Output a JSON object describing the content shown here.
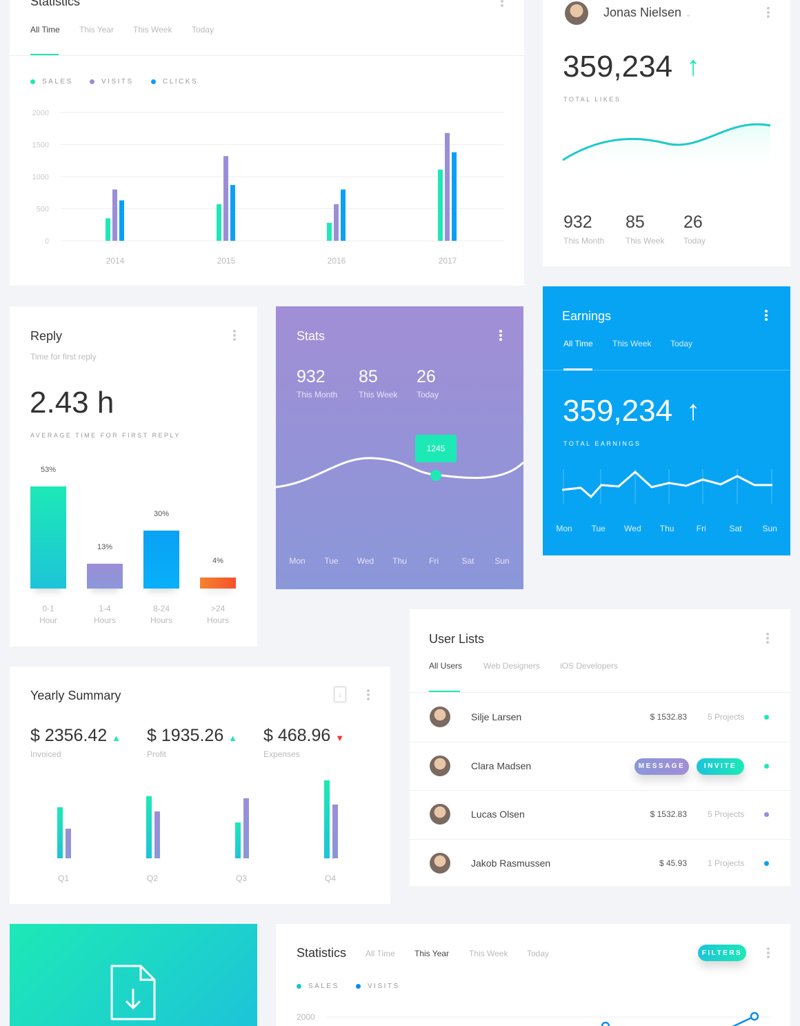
{
  "colors": {
    "teal": "#1de9b6",
    "purple": "#9b8ed6",
    "blue": "#0aa1f5",
    "orange": "#f5522d",
    "bg": "#f3f4f8"
  },
  "statistics": {
    "title": "Statistics",
    "tabs": [
      "All Time",
      "This Year",
      "This Week",
      "Today"
    ],
    "active_tab": "All Time",
    "menu_icon": "more-vertical-icon"
  },
  "chart_data": [
    {
      "type": "bar",
      "categories": [
        "2014",
        "2015",
        "2016",
        "2017"
      ],
      "ylim": [
        0,
        2000
      ],
      "yticks": [
        "2000",
        "1500",
        "1000",
        "500",
        "0"
      ],
      "grid": true,
      "legend": "top-left",
      "series": [
        {
          "name": "SALES",
          "color": "#1de9b6",
          "values": [
            350,
            570,
            280,
            1110
          ]
        },
        {
          "name": "VISITS",
          "color": "#9b8ed6",
          "values": [
            800,
            1320,
            570,
            1680
          ]
        },
        {
          "name": "CLICKS",
          "color": "#0aa1f5",
          "values": [
            630,
            870,
            800,
            1380
          ]
        }
      ]
    },
    {
      "type": "bar",
      "categories": [
        "0-1 Hour",
        "1-4 Hours",
        "8-24 Hours",
        ">24 Hours"
      ],
      "values": [
        53,
        13,
        30,
        4
      ],
      "labels": [
        "53%",
        "13%",
        "30%",
        "4%"
      ]
    },
    {
      "type": "bar",
      "categories": [
        "Q1",
        "Q2",
        "Q3",
        "Q4"
      ],
      "series": [
        {
          "values": [
            74,
            90,
            52,
            113
          ]
        },
        {
          "values": [
            43,
            68,
            87,
            78
          ]
        }
      ]
    }
  ],
  "profile": {
    "name": "Jonas Nielsen",
    "total": "359,234",
    "total_label": "TOTAL LIKES",
    "stats": [
      {
        "value": "932",
        "label": "This Month"
      },
      {
        "value": "85",
        "label": "This Week"
      },
      {
        "value": "26",
        "label": "Today"
      }
    ]
  },
  "reply": {
    "title": "Reply",
    "subtitle": "Time for first reply",
    "value": "2.43 h",
    "value_label": "AVERAGE TIME FOR FIRST REPLY",
    "bars": [
      {
        "pct": "53%",
        "l1": "0-1",
        "l2": "Hour"
      },
      {
        "pct": "13%",
        "l1": "1-4",
        "l2": "Hours"
      },
      {
        "pct": "30%",
        "l1": "8-24",
        "l2": "Hours"
      },
      {
        "pct": "4%",
        "l1": ">24",
        "l2": "Hours"
      }
    ]
  },
  "stats": {
    "title": "Stats",
    "items": [
      {
        "value": "932",
        "label": "This Month"
      },
      {
        "value": "85",
        "label": "This Week"
      },
      {
        "value": "26",
        "label": "Today"
      }
    ],
    "tooltip": "1245",
    "days": [
      "Mon",
      "Tue",
      "Wed",
      "Thu",
      "Fri",
      "Sat",
      "Sun"
    ]
  },
  "earnings": {
    "title": "Earnings",
    "tabs": [
      "All Time",
      "This Week",
      "Today"
    ],
    "total": "359,234",
    "total_label": "TOTAL EARNINGS",
    "days": [
      "Mon",
      "Tue",
      "Wed",
      "Thu",
      "Fri",
      "Sat",
      "Sun"
    ]
  },
  "users": {
    "title": "User Lists",
    "tabs": [
      "All Users",
      "Web Designers",
      "iOS Developers"
    ],
    "message": "MESSAGE",
    "invite": "INVITE",
    "rows": [
      {
        "name": "Silje Larsen",
        "amount": "$ 1532.83",
        "projects": "5 Projects",
        "status": "#1de9b6"
      },
      {
        "name": "Clara Madsen",
        "status": "#1de9b6"
      },
      {
        "name": "Lucas Olsen",
        "amount": "$ 1532.83",
        "projects": "5 Projects",
        "status": "#9b8ed6"
      },
      {
        "name": "Jakob Rasmussen",
        "amount": "$ 45.93",
        "projects": "1 Projects",
        "status": "#0aa1f5"
      }
    ]
  },
  "yearly": {
    "title": "Yearly Summary",
    "items": [
      {
        "value": "$ 2356.42",
        "label": "Invoiced",
        "trend": "up"
      },
      {
        "value": "$ 1935.26",
        "label": "Profit",
        "trend": "up"
      },
      {
        "value": "$ 468.96",
        "label": "Expenses",
        "trend": "down"
      }
    ],
    "quarters": [
      "Q1",
      "Q2",
      "Q3",
      "Q4"
    ]
  },
  "statistics2": {
    "title": "Statistics",
    "tabs": [
      "All Time",
      "This Year",
      "This Week",
      "Today"
    ],
    "active_tab": "This Year",
    "filters": "FILTERS",
    "legend": [
      "SALES",
      "VISITS"
    ],
    "ytick": "2000"
  }
}
